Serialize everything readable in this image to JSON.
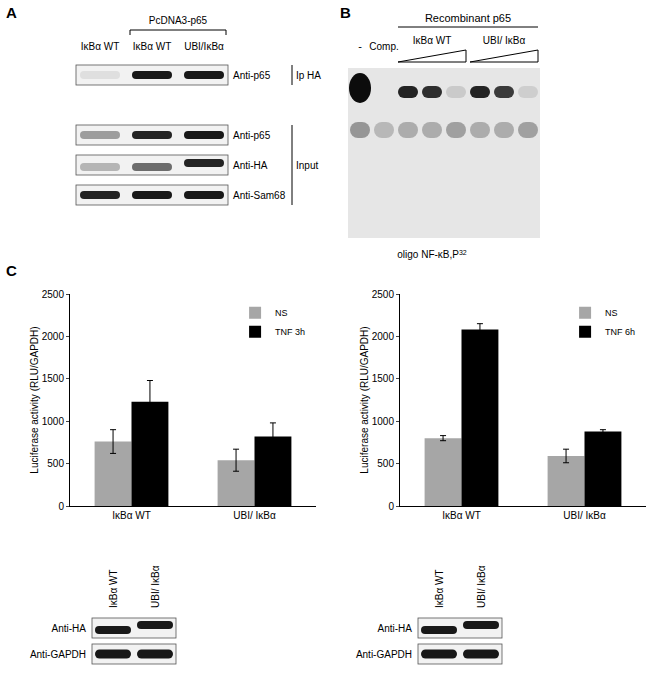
{
  "panels": {
    "A": {
      "label": "A",
      "header": "PcDNA3-p65",
      "lanes": [
        "IκBα WT",
        "IκBα WT",
        "UBI/IκBα"
      ],
      "rows": [
        {
          "label": "Anti-p65",
          "group": "Ip HA"
        },
        {
          "label": "Anti-p65",
          "group": "Input"
        },
        {
          "label": "Anti-HA",
          "group": "Input"
        },
        {
          "label": "Anti-Sam68",
          "group": "Input"
        }
      ]
    },
    "B": {
      "label": "B",
      "header": "Recombinant p65",
      "lanes": [
        "-",
        "Comp.",
        "IκBα WT",
        "UBI/ IκBα"
      ],
      "footer": "oligo NF-κB,P",
      "footer_sup": "32"
    },
    "C": {
      "label": "C",
      "blots": [
        {
          "lanes": [
            "IκBα WT",
            "UBI/ IκBα"
          ],
          "rows": [
            "Anti-HA",
            "Anti-GAPDH"
          ]
        },
        {
          "lanes": [
            "IκBα WT",
            "UBI/ IκBα"
          ],
          "rows": [
            "Anti-HA",
            "Anti-GAPDH"
          ]
        }
      ]
    }
  },
  "chart_data": [
    {
      "type": "bar",
      "categories": [
        "IκBα WT",
        "UBI/ IκBα"
      ],
      "ylabel": "Luciferase activity (RLU/GAPDH)",
      "ylim": [
        0,
        2500
      ],
      "yticks": [
        0,
        500,
        1000,
        1500,
        2000,
        2500
      ],
      "grid": false,
      "legend": "upper right",
      "series": [
        {
          "name": "NS",
          "color": "#a6a6a6",
          "values": [
            760,
            540
          ],
          "errors": [
            140,
            130
          ]
        },
        {
          "name": "TNF 3h",
          "color": "#000000",
          "values": [
            1230,
            820
          ],
          "errors": [
            250,
            160
          ]
        }
      ]
    },
    {
      "type": "bar",
      "categories": [
        "IκBα WT",
        "UBI/ IκBα"
      ],
      "ylabel": "Luciferase activity (RLU/GAPDH)",
      "ylim": [
        0,
        2500
      ],
      "yticks": [
        0,
        500,
        1000,
        1500,
        2000,
        2500
      ],
      "grid": false,
      "legend": "upper right",
      "series": [
        {
          "name": "NS",
          "color": "#a6a6a6",
          "values": [
            800,
            590
          ],
          "errors": [
            30,
            80
          ]
        },
        {
          "name": "TNF 6h",
          "color": "#000000",
          "values": [
            2080,
            880
          ],
          "errors": [
            70,
            20
          ]
        }
      ]
    }
  ]
}
